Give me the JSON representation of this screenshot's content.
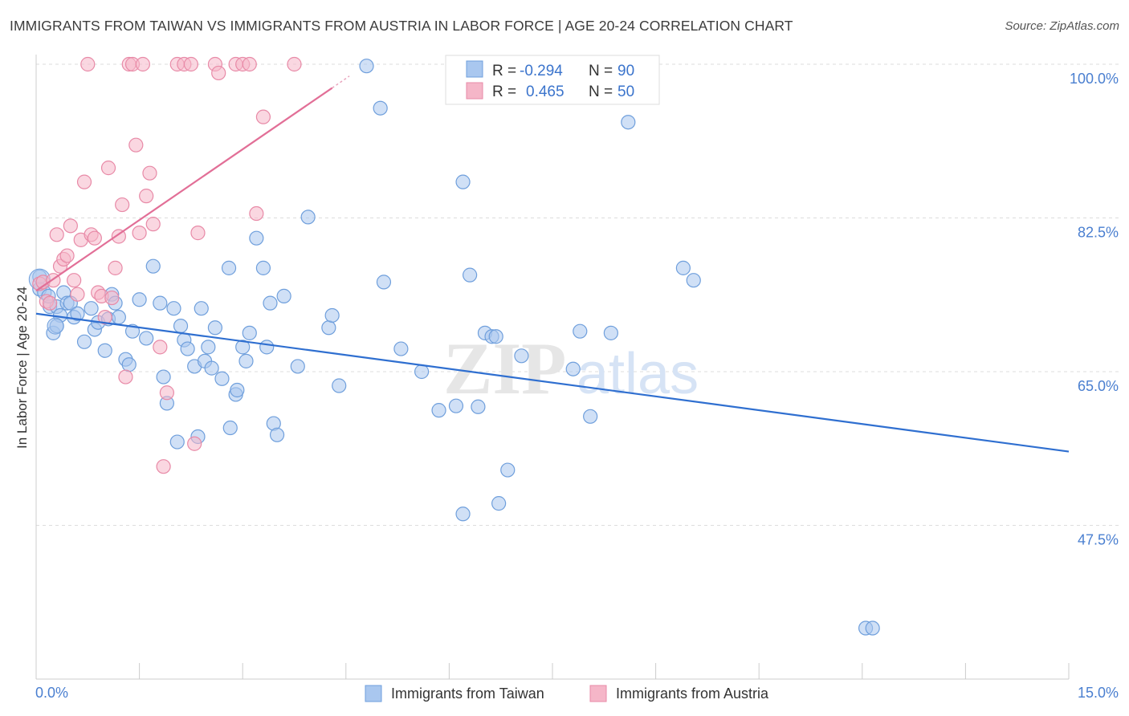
{
  "title": "IMMIGRANTS FROM TAIWAN VS IMMIGRANTS FROM AUSTRIA IN LABOR FORCE | AGE 20-24 CORRELATION CHART",
  "source": "Source: ZipAtlas.com",
  "watermark": {
    "zip": "ZIP",
    "atlas": "atlas"
  },
  "legend": {
    "rows": [
      {
        "r_label": "R =",
        "r_value": "-0.294",
        "n_label": "N =",
        "n_value": "90",
        "color": "#a9c7ef"
      },
      {
        "r_label": "R =",
        "r_value": "0.465",
        "n_label": "N =",
        "n_value": "50",
        "color": "#f5b6c8"
      }
    ]
  },
  "bottom_legend": [
    "Immigrants from Taiwan",
    "Immigrants from Austria"
  ],
  "chart_data": {
    "type": "scatter",
    "title": "IMMIGRANTS FROM TAIWAN VS IMMIGRANTS FROM AUSTRIA IN LABOR FORCE | AGE 20-24 CORRELATION CHART",
    "xlabel": "",
    "ylabel": "In Labor Force | Age 20-24",
    "xlim": [
      0,
      15
    ],
    "ylim": [
      30,
      100
    ],
    "x_tick_labels": [
      "0.0%",
      "15.0%"
    ],
    "y_ticks": [
      47.5,
      65.0,
      82.5,
      100.0
    ],
    "y_tick_labels": [
      "47.5%",
      "65.0%",
      "82.5%",
      "100.0%"
    ],
    "grid": true,
    "legend_position": "top-center",
    "series": [
      {
        "name": "Immigrants from Taiwan",
        "color": "#a9c7ef",
        "stroke": "#6f9fdc",
        "trend": {
          "x": [
            0.0,
            15.0
          ],
          "y": [
            71.6,
            55.9
          ],
          "color": "#2f6fd0"
        },
        "points": [
          [
            0.05,
            74.4
          ],
          [
            0.12,
            74.0
          ],
          [
            0.2,
            72.4
          ],
          [
            0.25,
            69.4
          ],
          [
            0.3,
            72.4
          ],
          [
            0.35,
            71.4
          ],
          [
            0.4,
            74.0
          ],
          [
            0.45,
            72.8
          ],
          [
            0.5,
            72.8
          ],
          [
            0.55,
            71.2
          ],
          [
            0.6,
            71.6
          ],
          [
            0.7,
            68.4
          ],
          [
            0.8,
            72.2
          ],
          [
            0.85,
            69.8
          ],
          [
            0.9,
            70.6
          ],
          [
            1.0,
            67.4
          ],
          [
            1.05,
            71.0
          ],
          [
            1.1,
            73.8
          ],
          [
            1.15,
            72.8
          ],
          [
            1.2,
            71.2
          ],
          [
            1.3,
            66.4
          ],
          [
            1.35,
            65.8
          ],
          [
            1.4,
            69.6
          ],
          [
            1.5,
            73.2
          ],
          [
            1.6,
            68.8
          ],
          [
            1.7,
            77.0
          ],
          [
            1.8,
            72.8
          ],
          [
            1.85,
            64.4
          ],
          [
            1.9,
            61.4
          ],
          [
            2.0,
            72.2
          ],
          [
            2.05,
            57.0
          ],
          [
            2.1,
            70.2
          ],
          [
            2.15,
            68.6
          ],
          [
            2.2,
            67.6
          ],
          [
            2.3,
            65.6
          ],
          [
            2.35,
            57.6
          ],
          [
            2.4,
            72.2
          ],
          [
            2.45,
            66.2
          ],
          [
            2.5,
            67.8
          ],
          [
            2.55,
            65.4
          ],
          [
            2.6,
            70.0
          ],
          [
            2.7,
            64.2
          ],
          [
            2.8,
            76.8
          ],
          [
            2.82,
            58.6
          ],
          [
            2.9,
            62.4
          ],
          [
            2.92,
            62.9
          ],
          [
            3.0,
            67.8
          ],
          [
            3.05,
            66.2
          ],
          [
            3.1,
            69.4
          ],
          [
            3.2,
            80.2
          ],
          [
            3.3,
            76.8
          ],
          [
            3.35,
            67.8
          ],
          [
            3.4,
            72.8
          ],
          [
            3.45,
            59.1
          ],
          [
            3.5,
            57.8
          ],
          [
            3.6,
            73.6
          ],
          [
            3.8,
            65.6
          ],
          [
            3.95,
            82.6
          ],
          [
            4.25,
            70.0
          ],
          [
            4.3,
            71.4
          ],
          [
            4.4,
            63.4
          ],
          [
            4.8,
            99.8
          ],
          [
            5.0,
            95.0
          ],
          [
            5.05,
            75.2
          ],
          [
            5.3,
            67.6
          ],
          [
            5.6,
            65.0
          ],
          [
            5.85,
            60.6
          ],
          [
            6.1,
            61.1
          ],
          [
            6.2,
            48.8
          ],
          [
            6.2,
            86.6
          ],
          [
            6.3,
            76.0
          ],
          [
            6.42,
            61.0
          ],
          [
            6.52,
            69.4
          ],
          [
            6.62,
            69.0
          ],
          [
            6.68,
            69.0
          ],
          [
            6.72,
            50.0
          ],
          [
            6.85,
            53.8
          ],
          [
            7.05,
            66.8
          ],
          [
            7.8,
            65.3
          ],
          [
            7.9,
            69.6
          ],
          [
            8.05,
            59.9
          ],
          [
            8.35,
            69.4
          ],
          [
            8.6,
            93.4
          ],
          [
            9.4,
            76.8
          ],
          [
            9.55,
            75.4
          ],
          [
            12.05,
            35.8
          ],
          [
            12.15,
            35.8
          ],
          [
            0.05,
            75.8
          ],
          [
            0.3,
            70.2
          ],
          [
            0.18,
            73.6
          ]
        ]
      },
      {
        "name": "Immigrants from Austria",
        "color": "#f5b6c8",
        "stroke": "#e88aa7",
        "trend": {
          "x": [
            0.0,
            4.3
          ],
          "y": [
            74.2,
            97.3
          ],
          "color": "#e26f97"
        },
        "points": [
          [
            0.05,
            75.0
          ],
          [
            0.1,
            75.2
          ],
          [
            0.15,
            73.0
          ],
          [
            0.2,
            72.8
          ],
          [
            0.25,
            75.4
          ],
          [
            0.3,
            80.6
          ],
          [
            0.35,
            77.0
          ],
          [
            0.4,
            77.8
          ],
          [
            0.45,
            78.2
          ],
          [
            0.5,
            81.6
          ],
          [
            0.55,
            75.4
          ],
          [
            0.6,
            73.8
          ],
          [
            0.65,
            80.0
          ],
          [
            0.7,
            86.6
          ],
          [
            0.75,
            100.0
          ],
          [
            0.8,
            80.6
          ],
          [
            0.85,
            80.2
          ],
          [
            0.9,
            74.0
          ],
          [
            0.95,
            73.6
          ],
          [
            1.0,
            71.2
          ],
          [
            1.05,
            88.2
          ],
          [
            1.1,
            73.4
          ],
          [
            1.15,
            76.8
          ],
          [
            1.2,
            80.4
          ],
          [
            1.25,
            84.0
          ],
          [
            1.3,
            64.4
          ],
          [
            1.35,
            100.0
          ],
          [
            1.4,
            100.0
          ],
          [
            1.45,
            90.8
          ],
          [
            1.5,
            80.8
          ],
          [
            1.55,
            100.0
          ],
          [
            1.6,
            85.0
          ],
          [
            1.65,
            87.6
          ],
          [
            1.7,
            81.8
          ],
          [
            1.8,
            67.8
          ],
          [
            1.85,
            54.2
          ],
          [
            1.9,
            62.6
          ],
          [
            2.05,
            100.0
          ],
          [
            2.15,
            100.0
          ],
          [
            2.25,
            100.0
          ],
          [
            2.3,
            56.8
          ],
          [
            2.35,
            80.8
          ],
          [
            2.6,
            100.0
          ],
          [
            2.65,
            99.0
          ],
          [
            2.9,
            100.0
          ],
          [
            3.0,
            100.0
          ],
          [
            3.1,
            100.0
          ],
          [
            3.2,
            83.0
          ],
          [
            3.3,
            94.0
          ],
          [
            3.75,
            100.0
          ]
        ]
      }
    ]
  }
}
